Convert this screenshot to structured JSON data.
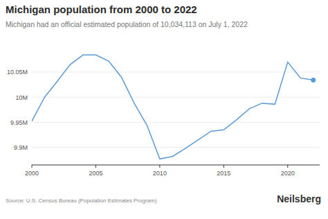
{
  "chart_data": {
    "type": "line",
    "title": "Michigan population from 2000 to 2022",
    "subtitle": "Michigan had an official estimated population of 10,034,113 on July 1, 2022",
    "x": [
      2000,
      2001,
      2002,
      2003,
      2004,
      2005,
      2006,
      2007,
      2008,
      2009,
      2010,
      2011,
      2012,
      2013,
      2014,
      2015,
      2016,
      2017,
      2018,
      2019,
      2020,
      2021,
      2022
    ],
    "values": [
      9952000,
      10000000,
      10032000,
      10065000,
      10084000,
      10084000,
      10072000,
      10040000,
      9988000,
      9944000,
      9877000,
      9882000,
      9898000,
      9915000,
      9932000,
      9935000,
      9955000,
      9977000,
      9988000,
      9986000,
      10070000,
      10038000,
      10034113
    ],
    "color": "#5b9bd5",
    "marker": "last",
    "xlim": [
      2000,
      2022.5
    ],
    "xticks": [
      2000,
      2005,
      2010,
      2015,
      2020
    ],
    "ylim": [
      9865000,
      10090000
    ],
    "yticks": [
      {
        "value": 9900000,
        "label": "9.9M"
      },
      {
        "value": 9950000,
        "label": "9.95M"
      },
      {
        "value": 10000000,
        "label": "10M"
      },
      {
        "value": 10050000,
        "label": "10.05M"
      }
    ],
    "grid": true
  },
  "footer": {
    "source": "Source: U.S. Census Bureau (Population Estimates Program)",
    "brand": "Neilsberg"
  }
}
